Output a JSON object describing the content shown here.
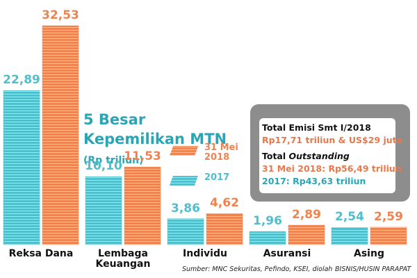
{
  "chart_data": {
    "type": "bar",
    "title": "5 Besar Kepemilikan MTN",
    "subtitle": "(Rp triliun)",
    "categories": [
      "Reksa Dana",
      "Lembaga Keuangan",
      "Individu",
      "Asuransi",
      "Asing"
    ],
    "series": [
      {
        "name": "2017",
        "color": "#4fbfcc",
        "values": [
          22.89,
          10.1,
          3.86,
          1.96,
          2.54
        ],
        "value_labels": [
          "22,89",
          "10,10",
          "3,86",
          "1,96",
          "2,54"
        ]
      },
      {
        "name": "31 Mei 2018",
        "color": "#ee8350",
        "values": [
          32.53,
          11.53,
          4.62,
          2.89,
          2.59
        ],
        "value_labels": [
          "32,53",
          "11,53",
          "4,62",
          "2,89",
          "2,59"
        ]
      }
    ],
    "info_box": {
      "heading": "Total Emisi Smt I/2018",
      "emission": "Rp17,71 triliun & US$29 juta",
      "outstanding_heading": {
        "text": "Total",
        "emphasis": "Outstanding"
      },
      "outstanding_2018": "31 Mei 2018: Rp56,49 triliun",
      "outstanding_2017": "2017: Rp43,63 triliun"
    },
    "source": "Sumber: MNC Sekuritas, Pefindo, KSEI, diolah",
    "credit": "BISNIS/HUSIN PARAPAT"
  }
}
